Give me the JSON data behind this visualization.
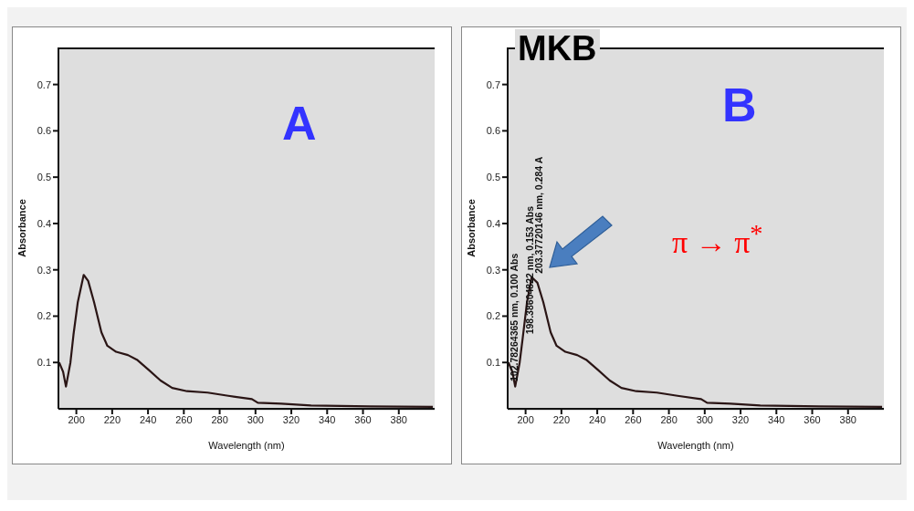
{
  "chart_data": [
    {
      "type": "line",
      "title": "A",
      "xlabel": "Wavelength (nm)",
      "ylabel": "Absorbance",
      "xlim": [
        190,
        400
      ],
      "ylim": [
        0,
        0.78
      ],
      "xticks": [
        200,
        220,
        240,
        260,
        280,
        300,
        320,
        340,
        360,
        380
      ],
      "yticks": [
        0.1,
        0.2,
        0.3,
        0.4,
        0.5,
        0.6,
        0.7
      ],
      "legend": false,
      "marker": "none",
      "line_style": "solid",
      "series": [
        {
          "color": "#2a1515",
          "x": [
            190.4,
            192.6,
            194.2,
            196.7,
            198.4,
            200.8,
            204.1,
            206.6,
            209.9,
            214,
            217.3,
            222.2,
            228.8,
            233.8,
            240.4,
            247,
            253.5,
            261.8,
            273.3,
            284.8,
            298,
            301.3,
            314.4,
            331,
            364,
            399
          ],
          "values": [
            0.1,
            0.08,
            0.048,
            0.1,
            0.16,
            0.23,
            0.289,
            0.276,
            0.23,
            0.165,
            0.136,
            0.123,
            0.116,
            0.106,
            0.084,
            0.061,
            0.045,
            0.038,
            0.035,
            0.028,
            0.021,
            0.013,
            0.011,
            0.007,
            0.005,
            0.004
          ]
        }
      ]
    },
    {
      "type": "line",
      "title": "B",
      "subtitle": "MKB",
      "xlabel": "Wavelength (nm)",
      "ylabel": "Absorbance",
      "xlim": [
        190,
        400
      ],
      "ylim": [
        0,
        0.78
      ],
      "xticks": [
        200,
        220,
        240,
        260,
        280,
        300,
        320,
        340,
        360,
        380
      ],
      "yticks": [
        0.1,
        0.2,
        0.3,
        0.4,
        0.5,
        0.6,
        0.7
      ],
      "legend": false,
      "marker": "none",
      "line_style": "solid",
      "annotations": [
        "102.78264365 nm, 0.100 Abs",
        {
          "text": "198.38604822 nm, 0.153 Abs",
          "x": 198.386,
          "y": 0.153
        },
        {
          "text": "203.37720146 nm, 0.284 A",
          "x": 203.377,
          "y": 0.284
        },
        "π → π$^{*}$"
      ],
      "series": [
        {
          "color": "#2a1515",
          "x": [
            190.4,
            192.6,
            194.2,
            196.7,
            198.4,
            200.8,
            203.4,
            206.6,
            209.9,
            214,
            217.3,
            222.2,
            228.8,
            233.8,
            240.4,
            247,
            253.5,
            261.8,
            273.3,
            284.8,
            298,
            301.3,
            314.4,
            331,
            364,
            399
          ],
          "values": [
            0.1,
            0.08,
            0.048,
            0.1,
            0.153,
            0.23,
            0.284,
            0.272,
            0.23,
            0.165,
            0.136,
            0.123,
            0.116,
            0.106,
            0.084,
            0.061,
            0.045,
            0.038,
            0.035,
            0.028,
            0.021,
            0.013,
            0.011,
            0.007,
            0.005,
            0.004
          ]
        }
      ]
    }
  ]
}
